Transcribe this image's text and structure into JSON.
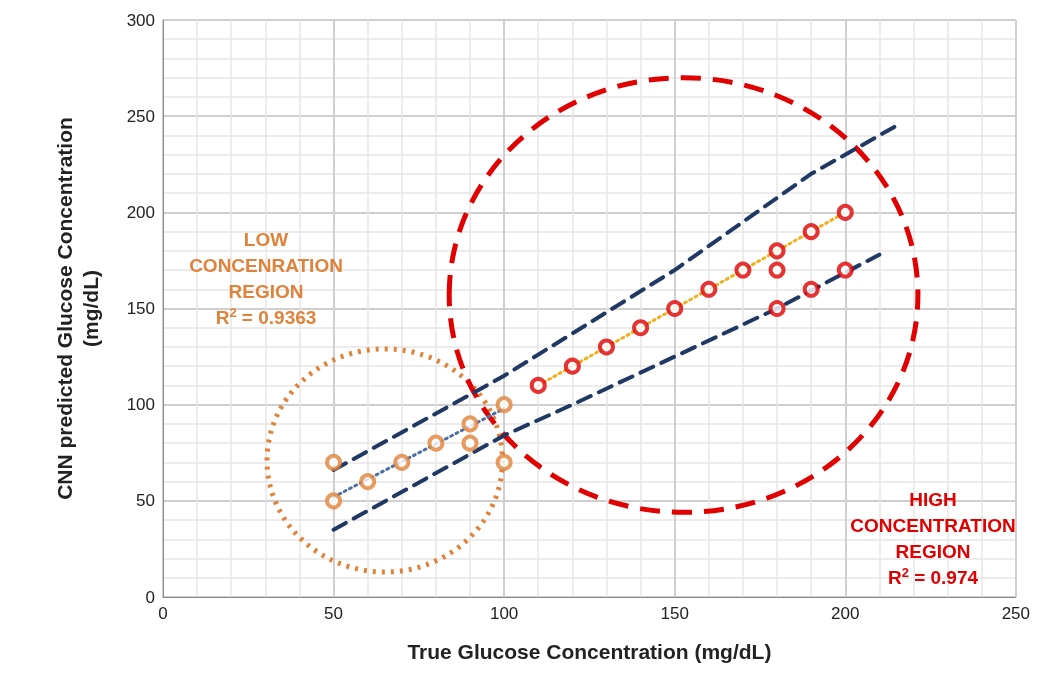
{
  "chart_data": {
    "type": "scatter",
    "xlabel": "True Glucose Concentration (mg/dL)",
    "ylabel": "CNN predicted Glucose Concentration\n(mg/dL)",
    "xlim": [
      0,
      250
    ],
    "xticks": [
      0,
      50,
      100,
      150,
      200,
      250
    ],
    "ylim": [
      0,
      300
    ],
    "yticks": [
      0,
      50,
      100,
      150,
      200,
      250,
      300
    ],
    "grid": true,
    "series": [
      {
        "marker": "circle",
        "color": "#e0823a",
        "x": [
          50,
          50,
          60,
          70,
          80,
          90,
          90,
          100,
          100
        ],
        "values": [
          70,
          50,
          60,
          70,
          80,
          90,
          80,
          100,
          70
        ]
      },
      {
        "marker": "circle",
        "color": "#e00000",
        "x": [
          110,
          120,
          130,
          140,
          150,
          160,
          170,
          180,
          180,
          180,
          190,
          190,
          200,
          200
        ],
        "values": [
          110,
          120,
          130,
          140,
          150,
          160,
          170,
          180,
          170,
          150,
          190,
          160,
          200,
          170
        ]
      },
      {
        "type": "line",
        "marker": "none",
        "line_style": "dotted",
        "color": "#4a6fa5",
        "x": [
          50,
          100
        ],
        "values": [
          52,
          98
        ]
      },
      {
        "type": "line",
        "marker": "none",
        "line_style": "dotted",
        "color": "#f0b020",
        "x": [
          110,
          200
        ],
        "values": [
          110,
          200
        ]
      },
      {
        "type": "line",
        "marker": "none",
        "line_style": "dashed",
        "color": "#1f3864",
        "x": [
          50,
          100,
          150,
          190,
          215
        ],
        "values": [
          66,
          115,
          170,
          220,
          245
        ]
      },
      {
        "type": "line",
        "marker": "none",
        "line_style": "dashed",
        "color": "#1f3864",
        "x": [
          50,
          100,
          120,
          180,
          210
        ],
        "values": [
          35,
          84,
          100,
          150,
          178
        ]
      }
    ],
    "annotations": [
      "LOW\nCONCENRATION\nREGION\nR$^{2}$ = 0.9363",
      "HIGH\nCONCENTRATION\nREGION\nR$^{2}$ = 0.974"
    ]
  }
}
